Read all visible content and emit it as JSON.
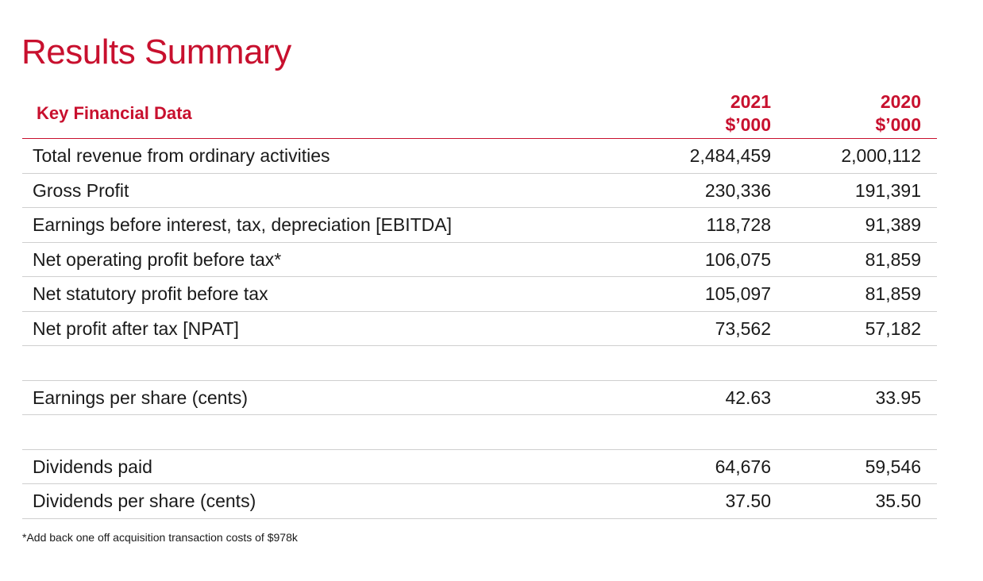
{
  "title": "Results Summary",
  "table": {
    "header_label": "Key Financial Data",
    "columns": [
      {
        "year": "2021",
        "unit": "$’000"
      },
      {
        "year": "2020",
        "unit": "$’000"
      }
    ],
    "rows": [
      {
        "label": "Total revenue from ordinary activities",
        "v2021": "2,484,459",
        "v2020": "2,000,112"
      },
      {
        "label": "Gross Profit",
        "v2021": "230,336",
        "v2020": "191,391"
      },
      {
        "label": "Earnings before interest, tax, depreciation [EBITDA]",
        "v2021": "118,728",
        "v2020": "91,389"
      },
      {
        "label": "Net operating profit before tax*",
        "v2021": "106,075",
        "v2020": "81,859"
      },
      {
        "label": "Net statutory profit before tax",
        "v2021": "105,097",
        "v2020": "81,859"
      },
      {
        "label": "Net profit after tax [NPAT]",
        "v2021": "73,562",
        "v2020": "57,182"
      },
      {
        "label": "",
        "v2021": "",
        "v2020": ""
      },
      {
        "label": "Earnings per share (cents)",
        "v2021": "42.63",
        "v2020": "33.95"
      },
      {
        "label": "",
        "v2021": "",
        "v2020": ""
      },
      {
        "label": "Dividends paid",
        "v2021": "64,676",
        "v2020": "59,546"
      },
      {
        "label": "Dividends per share (cents)",
        "v2021": "37.50",
        "v2020": "35.50"
      }
    ]
  },
  "footnote": "*Add back one off acquisition transaction costs of $978k",
  "colors": {
    "accent": "#c8102e",
    "rule": "#cfcfcf"
  }
}
